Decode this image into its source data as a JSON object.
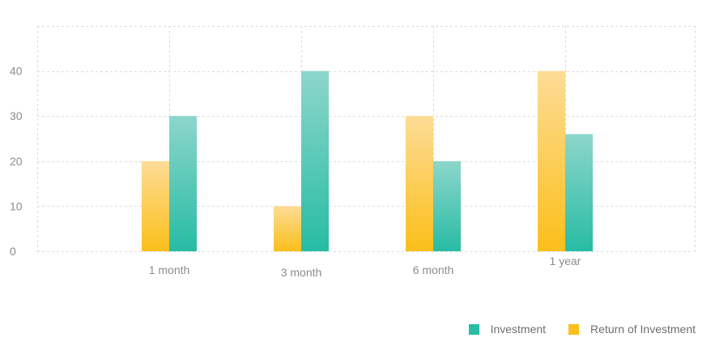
{
  "chart_data": {
    "type": "bar",
    "categories": [
      "1 month",
      "3 month",
      "6 month",
      "1 year"
    ],
    "series": [
      {
        "name": "Return of Investment",
        "values": [
          20,
          10,
          30,
          40
        ],
        "color_top": "#fddc96",
        "color_bottom": "#fbbf1a"
      },
      {
        "name": "Investment",
        "values": [
          30,
          40,
          20,
          26
        ],
        "color_top": "#8dd6cb",
        "color_bottom": "#27bca4"
      }
    ],
    "yticks": [
      0,
      10,
      20,
      30,
      40
    ],
    "ylim": [
      0,
      50
    ],
    "title": "",
    "xlabel": "",
    "ylabel": "",
    "grid": true,
    "legend_position": "bottom-right"
  },
  "legend": {
    "items": [
      {
        "label": "Investment",
        "color": "#27bca4"
      },
      {
        "label": "Return of Investment",
        "color": "#fbbf1a"
      }
    ]
  }
}
